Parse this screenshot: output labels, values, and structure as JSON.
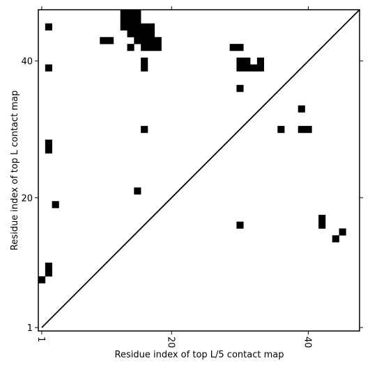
{
  "chart_data": {
    "type": "contact_map",
    "xlabel": "Residue index of top L/5 contact map",
    "ylabel": "Residue index of top L contact map",
    "xlim": [
      0.5,
      47.5
    ],
    "ylim": [
      0.5,
      47.5
    ],
    "xticks": [
      1,
      20,
      40
    ],
    "yticks": [
      1,
      20,
      40
    ],
    "color": "#000000",
    "series": [
      {
        "x": [
          2,
          2,
          2,
          2,
          3,
          2,
          2,
          1,
          15,
          16,
          30,
          30,
          36,
          39,
          40,
          39,
          42,
          42,
          45,
          44,
          16,
          16,
          14,
          10,
          11,
          29,
          30,
          30,
          31,
          33,
          30,
          31,
          32,
          33,
          13,
          14,
          15,
          13,
          14,
          15,
          13,
          14,
          15,
          16,
          17,
          14,
          15,
          16,
          17,
          15,
          16,
          17,
          18,
          16,
          17,
          18
        ],
        "y": [
          45,
          39,
          28,
          27,
          19,
          10,
          9,
          8,
          21,
          30,
          16,
          36,
          30,
          30,
          30,
          33,
          17,
          16,
          15,
          14,
          40,
          39,
          42,
          43,
          43,
          42,
          42,
          40,
          40,
          40,
          39,
          39,
          39,
          39,
          47,
          47,
          47,
          46,
          46,
          46,
          45,
          45,
          45,
          45,
          45,
          44,
          44,
          44,
          44,
          43,
          43,
          43,
          43,
          42,
          42,
          42
        ]
      }
    ]
  }
}
